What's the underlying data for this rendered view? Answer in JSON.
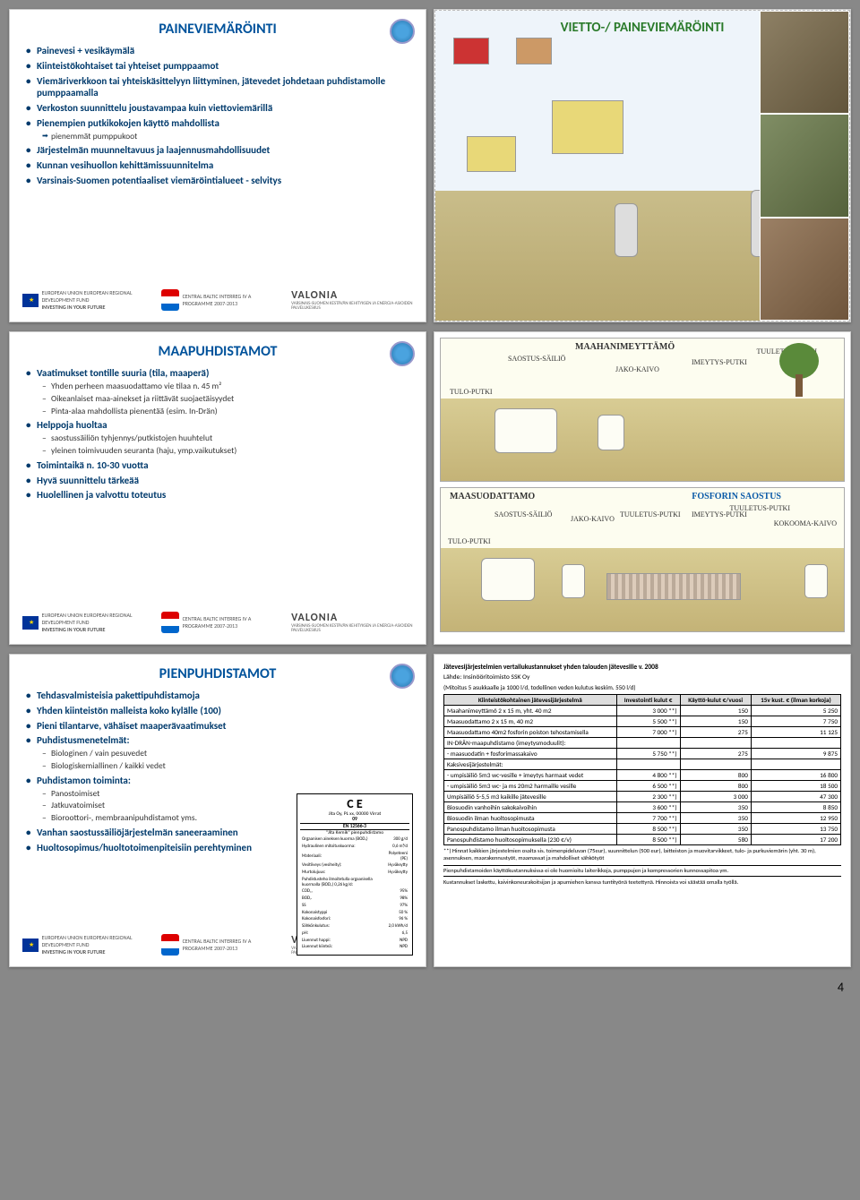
{
  "page_number": "4",
  "slide1": {
    "title": "PAINEVIEMÄRÖINTI",
    "lead": "Painevesi + vesikäymälä",
    "bullets": [
      "Kiinteistökohtaiset tai yhteiset pumppaamot",
      "Viemäriverkkoon tai yhteiskäsittelyyn liittyminen, jätevedet johdetaan puhdistamolle pumppaamalla",
      "Verkoston suunnittelu joustavampaa kuin viettoviemärillä",
      "Pienempien putkikokojen käyttö mahdollista",
      "Järjestelmän muunneltavuus ja laajennusmahdollisuudet",
      "Kunnan vesihuollon kehittämissuunnitelma",
      "Varsinais-Suomen potentiaaliset viemäröintialueet - selvitys"
    ],
    "arrow_sub": "pienemmät pumppukoot"
  },
  "slide2": {
    "title": "VIETTO-/ PAINEVIEMÄRÖINTI"
  },
  "slide3": {
    "title": "MAAPUHDISTAMOT",
    "b1": "Vaatimukset tontille suuria (tila, maaperä)",
    "b1s": [
      "Yhden perheen maasuodattamo vie tilaa n. 45 m²",
      "Oikeanlaiset maa-ainekset ja riittävät suojaetäisyydet",
      "Pinta-alaa mahdollista pienentää (esim. In-Drän)"
    ],
    "b2": "Helppoja huoltaa",
    "b2s": [
      "saostussäiliön tyhjennys/putkistojen huuhtelut",
      "yleinen toimivuuden seuranta (haju, ymp.vaikutukset)"
    ],
    "b3": "Toimintaikä n. 10-30 vuotta",
    "b4": "Hyvä suunnittelu tärkeää",
    "b5": "Huolellinen ja valvottu toteutus"
  },
  "slide4": {
    "labels": {
      "maahan": "MAAHANIMEYTTÄMÖ",
      "maasu": "MAASUODATTAMO",
      "fosfori": "FOSFORIN SAOSTUS",
      "tulo": "TULO-PUTKI",
      "saostus": "SAOSTUS-SÄILIÖ",
      "jako": "JAKO-KAIVO",
      "imeytys": "IMEYTYS-PUTKI",
      "tuuletus": "TUULETUS-PUTKI",
      "kokooma": "KOKOOMA-KAIVO"
    }
  },
  "slide5": {
    "title": "PIENPUHDISTAMOT",
    "bullets": [
      "Tehdasvalmisteisia pakettipuhdistamoja",
      "Yhden kiinteistön malleista koko kylälle (100)",
      "Pieni tilantarve, vähäiset maaperävaatimukset",
      "Puhdistusmenetelmät:",
      "Puhdistamon toiminta:",
      "Vanhan saostussäiliöjärjestelmän saneeraaminen",
      "Huoltosopimus/huoltotoimenpiteisiin perehtyminen"
    ],
    "s_methods": [
      "Biologinen / vain pesuvedet",
      "Biologiskemiallinen / kaikki vedet"
    ],
    "s_ops": [
      "Panostoimiset",
      "Jatkuvatoimiset",
      "Bioroottori-, membraanipuhdistamot yms."
    ],
    "ce": {
      "mark": "C E",
      "line1": "Jita Oy, PL xx, 00000 Virrat",
      "line2": "09",
      "line3": "EN 12566-3",
      "line4": "\"Jita Kemik\" pienpuhdistamo",
      "rows": [
        [
          "Orgaanisen aineksen kuorma (BOD₇)",
          "300 g/d"
        ],
        [
          "Hydraulinen mitoituskuorma:",
          "0,6 m³/d"
        ],
        [
          "Materiaali:",
          "Polyeteeni (PE)"
        ],
        [
          "Vesitiiveys (vesiheity):",
          "Hyväksytty"
        ],
        [
          "Murtolujuus:",
          "Hyväksytty"
        ],
        [
          "Puhdistusteho ilmoitetulla orgaanisella kuormalla (BOD₇) 0,26 kg/d:",
          ""
        ],
        [
          "COD꜀ᵣ",
          "95%"
        ],
        [
          "BOD₇",
          "98%"
        ],
        [
          "SS",
          "97%"
        ],
        [
          "Kokonaistyppi",
          "50 %"
        ],
        [
          "Kokonaisfosfori:",
          "96 %"
        ],
        [
          "Sähkönkulutus:",
          "2,0 kWh/d"
        ],
        [
          "pH:",
          "6,5"
        ],
        [
          "Liuennut happi:",
          "NPD"
        ],
        [
          "Liuennut kiinteä:",
          "NPD"
        ]
      ]
    }
  },
  "slide6": {
    "caption": "Jätevesijärjestelmien vertailukustannukset yhden talouden jätevesille v. 2008",
    "source": "Lähde: Insinööritoimisto SSK Oy",
    "sub": "(Mitoitus 5 asukkaalle ja 1000 l/d, todellinen veden kulutus keskim. 550 l/d)",
    "headers": [
      "Kiinteistökohtainen jätevesijärjestelmä",
      "Investointi kulut €",
      "Käyttö-kulut €/vuosi",
      "15v kust. € (ilman korkoja)"
    ],
    "rows": [
      [
        "Maahanimeyttämö 2 x 15 m, yht. 40 m2",
        "3 000 **)",
        "150",
        "5 250"
      ],
      [
        "Maasuodattamo 2 x 15 m, 40 m2",
        "5 500 **)",
        "150",
        "7 750"
      ],
      [
        "Maasuodattamo 40m2 fosforin poiston tehostamisella",
        "7 000 **)",
        "275",
        "11 125"
      ],
      [
        "IN-DRÄN-maapuhdistamo (imeytysmoduulit):",
        "",
        "",
        ""
      ],
      [
        "- maasuodatin + fosforimassakaivo",
        "5 750 **)",
        "275",
        "9 875"
      ],
      [
        "Kaksivesijärjestelmät:",
        "",
        "",
        ""
      ],
      [
        "- umpisäiliö 5m3 wc-vesille + imeytys harmaat vedet",
        "4 800 **)",
        "800",
        "16 800"
      ],
      [
        "- umpisäiliö 5m3 wc- ja ms 20m2 harmaille vesille",
        "6 500 **)",
        "800",
        "18 500"
      ],
      [
        "Umpisäiliö 5-5,5 m3 kaikille jätevesille",
        "2 300 **)",
        "3 000",
        "47 300"
      ],
      [
        "Biosuodin vanhoihin sakokaivoihin",
        "3 600 **)",
        "350",
        "8 850"
      ],
      [
        "Biosuodin ilman huoltosopimusta",
        "7 700 **)",
        "350",
        "12 950"
      ],
      [
        "Panospuhdistamo ilman huoltosopimusta",
        "8 500 **)",
        "350",
        "13 750"
      ],
      [
        "Panospuhdistamo huoltosopimuksella (230 €/v)",
        "8 500 **)",
        "580",
        "17 200"
      ]
    ],
    "note1": "**) Hinnat kaikkien järjestelmien osalta sis. toimenpideluvan (75eur), suunnittelun (500 eur), laitteiston ja muovitarvikkeet, tulo- ja purkuviemärin (yht. 30 m), asennuksen, maarakennustyöt, maamassat ja mahdolliset sähkötyöt",
    "note2": "Pienpuhdistamoiden käyttökustannuksissa ei ole huomioitu laiterikkoja, pumppujen ja kompressorien kunnossapitoa ym.",
    "note3": "Kustannukset laskettu, kaivinkoneurakoitsijan ja apumiehen kanssa tuntityönä teetettynä. Hinnoista voi säästää omalla työllä."
  },
  "footer": {
    "eu": "EUROPEAN UNION\nEUROPEAN REGIONAL DEVELOPMENT FUND",
    "invest": "INVESTING IN YOUR FUTURE",
    "cb": "CENTRAL BALTIC INTERREG IV A PROGRAMME 2007-2013",
    "valonia": "VALONIA",
    "valonia_sub": "VARSINAIS-SUOMEN KESTÄVÄN KEHITYKSEN JA ENERGIA-ASIOIDEN PALVELUKESKUS"
  }
}
